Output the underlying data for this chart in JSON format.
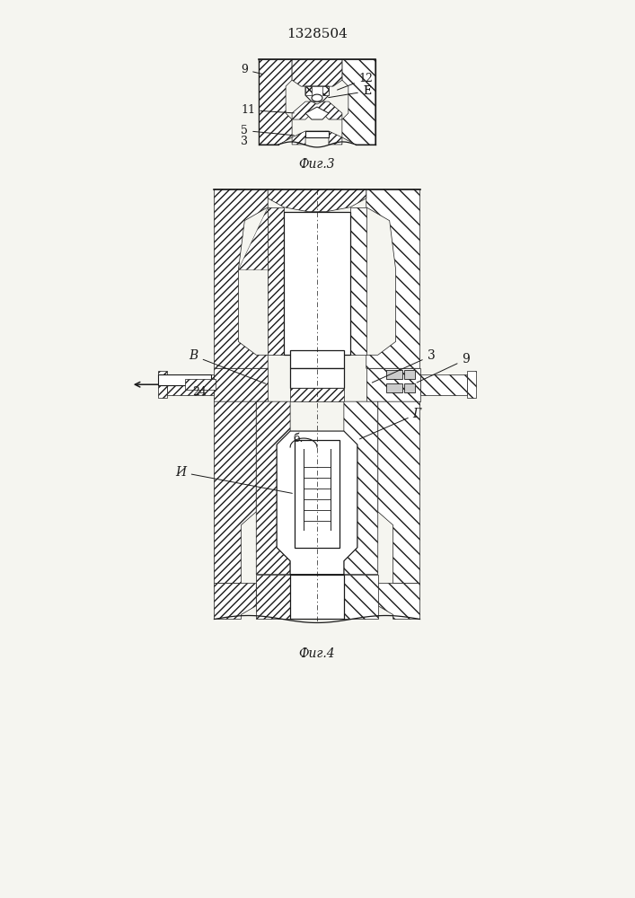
{
  "title": "1328504",
  "fig3_label": "Фиг.3",
  "fig4_label": "Фиг.4",
  "bg_color": "#f5f5f0",
  "line_color": "#1a1a1a",
  "hatch_lw": 0.4,
  "line_lw": 0.9
}
